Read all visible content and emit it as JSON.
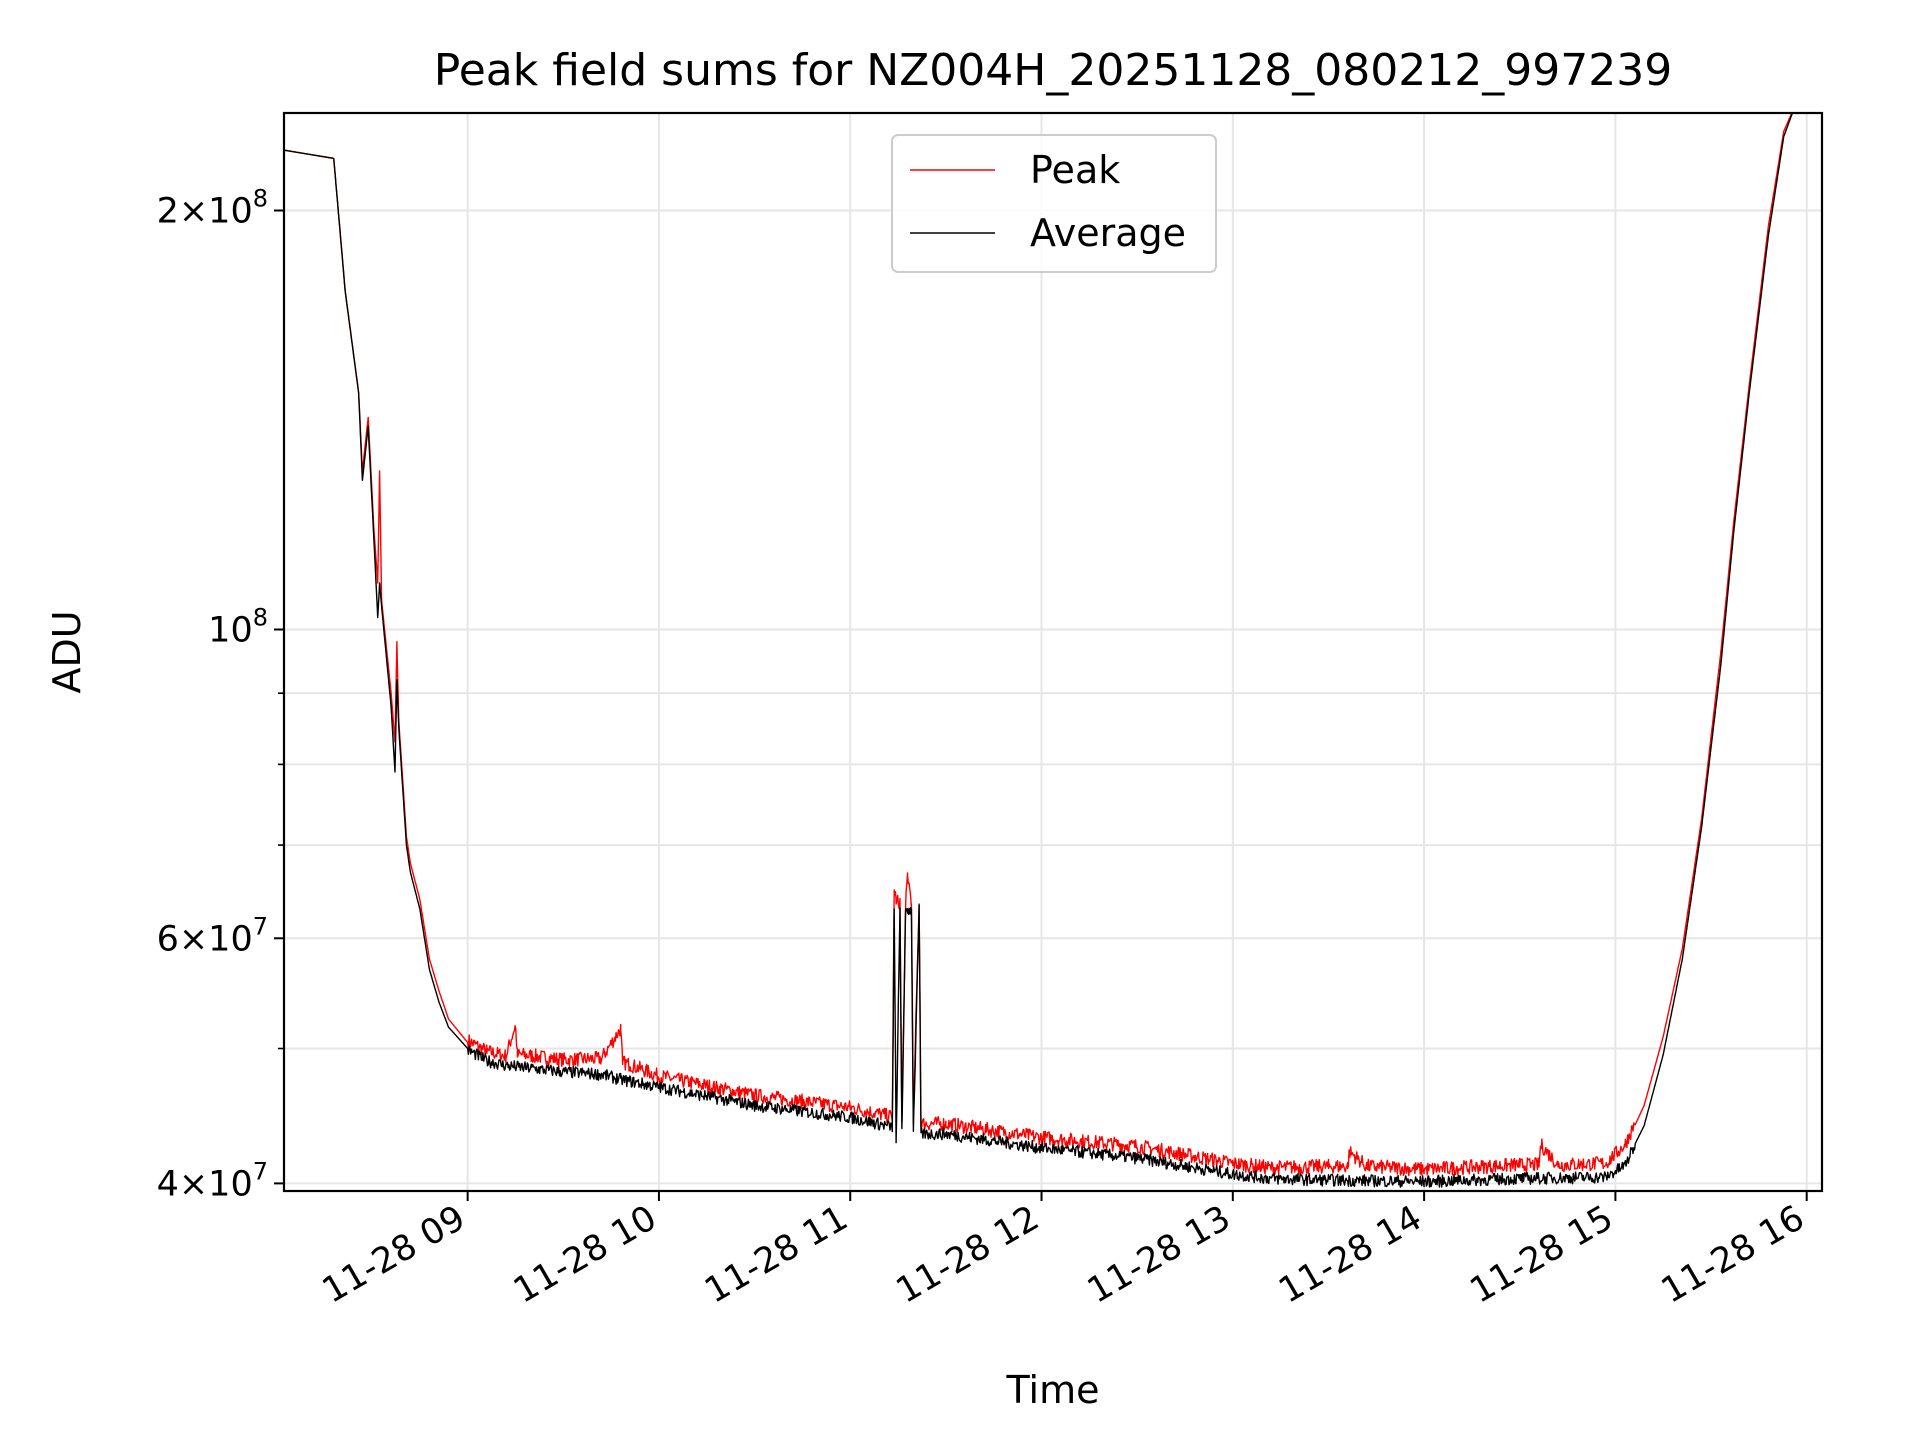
{
  "chart_data": {
    "type": "line",
    "title": "Peak field sums for NZ004H_20251128_080212_997239",
    "xlabel": "Time",
    "ylabel": "ADU",
    "yscale": "log",
    "ylim": [
      39500000,
      235000000
    ],
    "xlim_hours": [
      8.04,
      16.08
    ],
    "grid": true,
    "legend_position": "top-center",
    "x_ticks": [
      {
        "hour": 9,
        "label": "11-28 09"
      },
      {
        "hour": 10,
        "label": "11-28 10"
      },
      {
        "hour": 11,
        "label": "11-28 11"
      },
      {
        "hour": 12,
        "label": "11-28 12"
      },
      {
        "hour": 13,
        "label": "11-28 13"
      },
      {
        "hour": 14,
        "label": "11-28 14"
      },
      {
        "hour": 15,
        "label": "11-28 15"
      },
      {
        "hour": 16,
        "label": "11-28 16"
      }
    ],
    "y_major_ticks": [
      {
        "value": 40000000,
        "mantissa": "4",
        "exponent": "7"
      },
      {
        "value": 60000000,
        "mantissa": "6",
        "exponent": "7"
      },
      {
        "value": 100000000,
        "mantissa": "",
        "exponent": "8"
      },
      {
        "value": 200000000,
        "mantissa": "2",
        "exponent": "8"
      }
    ],
    "y_minor_gridlines": [
      50000000,
      70000000,
      80000000,
      90000000
    ],
    "series": [
      {
        "name": "Peak",
        "color": "#ff0000",
        "x_hours": [
          8.04,
          8.3,
          8.36,
          8.43,
          8.45,
          8.48,
          8.51,
          8.53,
          8.54,
          8.55,
          8.6,
          8.62,
          8.63,
          8.64,
          8.68,
          8.7,
          8.75,
          8.8,
          8.85,
          8.88,
          8.9,
          9.0,
          9.1,
          9.2,
          9.25,
          9.26,
          9.3,
          9.5,
          9.7,
          9.8,
          9.81,
          9.85,
          10.0,
          10.5,
          11.0,
          11.22,
          11.23,
          11.24,
          11.26,
          11.27,
          11.29,
          11.3,
          11.32,
          11.33,
          11.36,
          11.37,
          11.5,
          12.0,
          12.5,
          13.0,
          13.2,
          13.5,
          13.6,
          13.61,
          13.7,
          14.0,
          14.5,
          14.6,
          14.61,
          14.7,
          14.95,
          15.05,
          15.15,
          15.25,
          15.35,
          15.45,
          15.55,
          15.62,
          15.7,
          15.8,
          15.88,
          15.94,
          16.08
        ],
        "values": [
          221000000,
          218000000,
          175000000,
          148000000,
          130000000,
          142000000,
          118000000,
          108000000,
          130000000,
          105000000,
          90000000,
          83000000,
          98000000,
          86000000,
          71000000,
          68000000,
          64000000,
          58000000,
          55000000,
          53500000,
          52500000,
          50500000,
          49600000,
          49200000,
          51800000,
          49300000,
          49300000,
          48900000,
          49000000,
          51500000,
          48700000,
          48500000,
          47600000,
          46100000,
          45200000,
          44500000,
          65000000,
          63500000,
          63500000,
          44300000,
          63500000,
          66500000,
          63500000,
          44200000,
          63500000,
          44000000,
          44000000,
          43000000,
          42400000,
          41200000,
          40900000,
          41000000,
          41000000,
          42000000,
          41000000,
          40800000,
          41100000,
          41100000,
          42500000,
          41100000,
          41200000,
          42500000,
          45500000,
          51000000,
          59000000,
          73000000,
          96000000,
          120000000,
          150000000,
          195000000,
          228000000,
          238000000,
          238000000
        ]
      },
      {
        "name": "Average",
        "color": "#000000",
        "x_hours": [
          8.04,
          8.3,
          8.36,
          8.43,
          8.45,
          8.48,
          8.51,
          8.53,
          8.54,
          8.55,
          8.6,
          8.62,
          8.63,
          8.64,
          8.68,
          8.7,
          8.75,
          8.8,
          8.85,
          8.9,
          9.0,
          9.1,
          9.2,
          9.5,
          9.7,
          9.8,
          10.0,
          10.5,
          11.0,
          11.22,
          11.23,
          11.24,
          11.26,
          11.27,
          11.29,
          11.3,
          11.32,
          11.33,
          11.36,
          11.37,
          11.5,
          12.0,
          12.5,
          13.0,
          13.2,
          13.5,
          14.0,
          14.5,
          14.95,
          15.05,
          15.15,
          15.25,
          15.35,
          15.45,
          15.55,
          15.62,
          15.7,
          15.8,
          15.88,
          15.94,
          16.08
        ],
        "values": [
          221000000,
          218000000,
          175000000,
          148000000,
          128000000,
          140000000,
          116000000,
          102000000,
          108000000,
          104000000,
          88000000,
          79000000,
          92000000,
          85000000,
          70000000,
          67000000,
          63000000,
          57000000,
          54000000,
          51800000,
          50000000,
          49100000,
          48700000,
          48200000,
          48000000,
          47600000,
          47000000,
          45600000,
          44700000,
          44000000,
          63000000,
          42800000,
          63000000,
          43800000,
          63000000,
          63000000,
          63000000,
          43600000,
          63000000,
          43500000,
          43500000,
          42500000,
          41800000,
          40700000,
          40400000,
          40300000,
          40200000,
          40400000,
          40500000,
          41300000,
          44000000,
          49500000,
          58000000,
          72000000,
          94000000,
          118000000,
          148000000,
          192000000,
          226000000,
          238000000,
          238000000
        ]
      }
    ]
  }
}
